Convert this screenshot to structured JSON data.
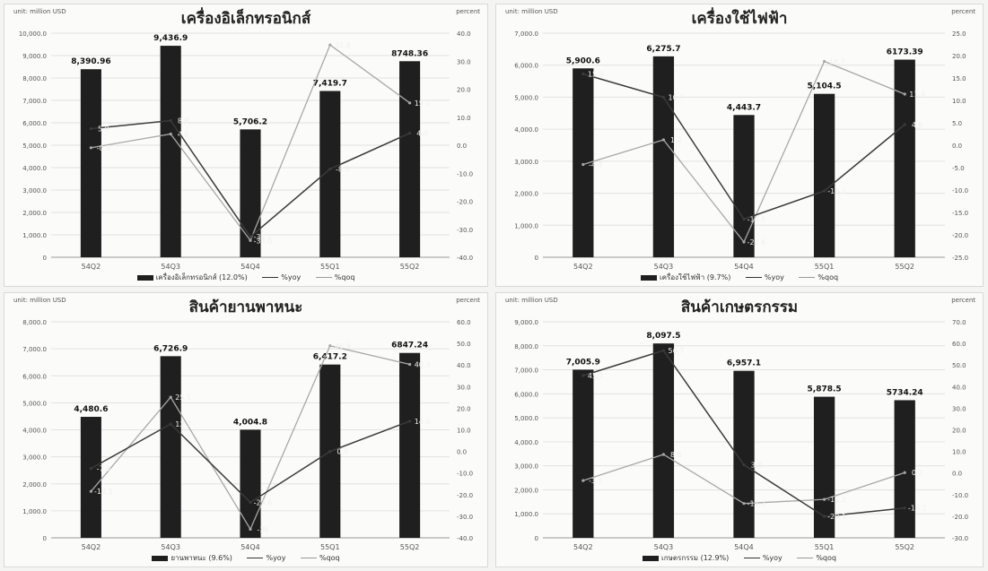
{
  "chart_data": [
    {
      "type": "bar",
      "title": "เครื่องอิเล็กทรอนิกส์",
      "unit_label": "unit: million USD",
      "y2label": "percent",
      "categories": [
        "54Q2",
        "54Q3",
        "54Q4",
        "55Q1",
        "55Q2"
      ],
      "ylim": [
        0,
        10000
      ],
      "yticks": [
        "0",
        "1,000.0",
        "2,000.0",
        "3,000.0",
        "4,000.0",
        "5,000.0",
        "6,000.0",
        "7,000.0",
        "8,000.0",
        "9,000.0",
        "10,000.0"
      ],
      "y2lim": [
        -40,
        40
      ],
      "y2ticks": [
        "-40.0",
        "-30.0",
        "-20.0",
        "-10.0",
        "0.0",
        "10.0",
        "20.0",
        "30.0",
        "40.0"
      ],
      "series": [
        {
          "name": "เครื่องอิเล็กทรอนิกส์ (12.0%)",
          "kind": "bar",
          "values": [
            8390.96,
            9436.9,
            5706.2,
            7419.7,
            8748.36
          ],
          "labels": [
            "8,390.96",
            "9,436.9",
            "5,706.2",
            "7,419.7",
            "8748.36"
          ]
        },
        {
          "name": "%yoy",
          "kind": "line",
          "values": [
            5.9,
            8.8,
            -32.7,
            -8.5,
            4.3
          ],
          "labels": [
            "5.9",
            "8.8",
            "-32.7",
            "-8.5",
            "4.3"
          ]
        },
        {
          "name": "%qoq",
          "kind": "line",
          "values": [
            -0.9,
            4.0,
            -34.0,
            35.8,
            15.1
          ],
          "labels": [
            "-0.9",
            "4.0",
            "-34.0",
            "35.8",
            "15.1"
          ]
        }
      ]
    },
    {
      "type": "bar",
      "title": "เครื่องใช้ไฟฟ้า",
      "unit_label": "unit: million USD",
      "y2label": "percent",
      "categories": [
        "54Q2",
        "54Q3",
        "54Q4",
        "55Q1",
        "55Q2"
      ],
      "ylim": [
        0,
        7000
      ],
      "yticks": [
        "0",
        "1,000.0",
        "2,000.0",
        "3,000.0",
        "4,000.0",
        "5,000.0",
        "6,000.0",
        "7,000.0"
      ],
      "y2lim": [
        -25,
        25
      ],
      "y2ticks": [
        "-25.0",
        "-20.0",
        "-15.0",
        "-10.0",
        "-5.0",
        "0.0",
        "5.0",
        "10.0",
        "15.0",
        "20.0",
        "25.0"
      ],
      "series": [
        {
          "name": "เครื่องใช้ไฟฟ้า (9.7%)",
          "kind": "bar",
          "values": [
            5900.6,
            6275.7,
            4443.7,
            5104.5,
            6173.39
          ],
          "labels": [
            "5,900.6",
            "6,275.7",
            "4,443.7",
            "5,104.5",
            "6173.39"
          ]
        },
        {
          "name": "%yoy",
          "kind": "line",
          "values": [
            15.9,
            10.7,
            -16.5,
            -10.2,
            4.6
          ],
          "labels": [
            "15.9",
            "10.7",
            "-16.5",
            "-10.2",
            "4.6"
          ]
        },
        {
          "name": "%qoq",
          "kind": "line",
          "values": [
            -4.3,
            1.2,
            -21.6,
            18.7,
            11.4
          ],
          "labels": [
            "-4.3",
            "1.2",
            "-21.6",
            "18.7",
            "11.4"
          ]
        }
      ]
    },
    {
      "type": "bar",
      "title": "สินค้ายานพาหนะ",
      "unit_label": "unit: million USD",
      "y2label": "percent",
      "categories": [
        "54Q2",
        "54Q3",
        "54Q4",
        "55Q1",
        "55Q2"
      ],
      "ylim": [
        0,
        8000
      ],
      "yticks": [
        "0",
        "1,000.0",
        "2,000.0",
        "3,000.0",
        "4,000.0",
        "5,000.0",
        "6,000.0",
        "7,000.0",
        "8,000.0"
      ],
      "y2lim": [
        -40,
        60
      ],
      "y2ticks": [
        "-40.0",
        "-30.0",
        "-20.0",
        "-10.0",
        "0.0",
        "10.0",
        "20.0",
        "30.0",
        "40.0",
        "50.0",
        "60.0"
      ],
      "series": [
        {
          "name": "ยานพาหนะ (9.6%)",
          "kind": "bar",
          "values": [
            4480.6,
            6726.9,
            4004.8,
            6417.2,
            6847.24
          ],
          "labels": [
            "4,480.6",
            "6,726.9",
            "4,004.8",
            "6,417.2",
            "6847.24"
          ]
        },
        {
          "name": "%yoy",
          "kind": "line",
          "values": [
            -7.9,
            12.7,
            -23.6,
            0.0,
            14.0
          ],
          "labels": [
            "-7.9",
            "12.7",
            "-23.6",
            "0.0",
            "14.0"
          ]
        },
        {
          "name": "%qoq",
          "kind": "line",
          "values": [
            -18.5,
            25.1,
            -36.0,
            48.9,
            40.3
          ],
          "labels": [
            "-18.5",
            "25.1",
            "-36",
            "48.9",
            "40.3"
          ]
        }
      ]
    },
    {
      "type": "bar",
      "title": "สินค้าเกษตรกรรม",
      "unit_label": "unit: million USD",
      "y2label": "percent",
      "categories": [
        "54Q2",
        "54Q3",
        "54Q4",
        "55Q1",
        "55Q2"
      ],
      "ylim": [
        0,
        9000
      ],
      "yticks": [
        "0",
        "1,000.0",
        "2,000.0",
        "3,000.0",
        "4,000.0",
        "5,000.0",
        "6,000.0",
        "7,000.0",
        "8,000.0",
        "9,000.0"
      ],
      "y2lim": [
        -30,
        70
      ],
      "y2ticks": [
        "-30.0",
        "-20.0",
        "-10.0",
        "0.0",
        "10.0",
        "20.0",
        "30.0",
        "40.0",
        "50.0",
        "60.0",
        "70.0"
      ],
      "series": [
        {
          "name": "เกษตรกรรม (12.9%)",
          "kind": "bar",
          "values": [
            7005.9,
            8097.5,
            6957.1,
            5878.5,
            5734.24
          ],
          "labels": [
            "7,005.9",
            "8,097.5",
            "6,957.1",
            "5,878.5",
            "5734.24"
          ]
        },
        {
          "name": "%yoy",
          "kind": "line",
          "values": [
            45.1,
            56.7,
            3.8,
            -20.1,
            -16.2
          ],
          "labels": [
            "45.1",
            "56.7",
            "3.8",
            "-20.1",
            "-16.2"
          ]
        },
        {
          "name": "%qoq",
          "kind": "line",
          "values": [
            -3.5,
            8.6,
            -14.1,
            -12.2,
            0.2
          ],
          "labels": [
            "-3.5",
            "8.6",
            "-14.1",
            "-12.2",
            "0.2"
          ]
        }
      ]
    }
  ]
}
